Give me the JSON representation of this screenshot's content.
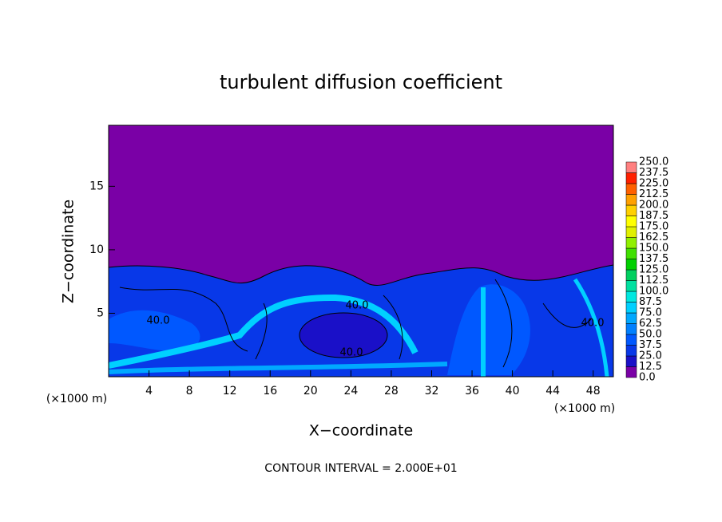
{
  "chart_data": {
    "type": "contour",
    "title": "turbulent diffusion coefficient",
    "x_label": "X−coordinate",
    "y_label": "Z−coordinate",
    "x_unit": "(×1000 m)",
    "note": "CONTOUR INTERVAL = 2.000E+01",
    "xlim": [
      0,
      50
    ],
    "ylim": [
      0,
      19.8
    ],
    "xticks": [
      4,
      8,
      12,
      16,
      20,
      24,
      28,
      32,
      36,
      40,
      44,
      48
    ],
    "yticks": [
      5,
      10,
      15
    ],
    "contour_labels": [
      "40.0",
      "40.0",
      "40.0",
      "40.0"
    ],
    "colorbar": {
      "levels": [
        {
          "value": 0,
          "label": "0.0"
        },
        {
          "value": 12.5,
          "label": "12.5"
        },
        {
          "value": 25,
          "label": "25.0"
        },
        {
          "value": 37.5,
          "label": "37.5"
        },
        {
          "value": 50,
          "label": "50.0"
        },
        {
          "value": 62.5,
          "label": "62.5"
        },
        {
          "value": 75,
          "label": "75.0"
        },
        {
          "value": 87.5,
          "label": "87.5"
        },
        {
          "value": 100,
          "label": "100.0"
        },
        {
          "value": 112.5,
          "label": "112.5"
        },
        {
          "value": 125,
          "label": "125.0"
        },
        {
          "value": 137.5,
          "label": "137.5"
        },
        {
          "value": 150,
          "label": "150.0"
        },
        {
          "value": 162.5,
          "label": "162.5"
        },
        {
          "value": 175,
          "label": "175.0"
        },
        {
          "value": 187.5,
          "label": "187.5"
        },
        {
          "value": 200,
          "label": "200.0"
        },
        {
          "value": 212.5,
          "label": "212.5"
        },
        {
          "value": 225,
          "label": "225.0"
        },
        {
          "value": 237.5,
          "label": "237.5"
        },
        {
          "value": 250,
          "label": "250.0"
        }
      ],
      "colors": [
        "#7a00a6",
        "#1a10c8",
        "#0838e8",
        "#0058ff",
        "#0080ff",
        "#00a8ff",
        "#00d0ff",
        "#00e8e0",
        "#00e0a0",
        "#00d060",
        "#00d000",
        "#40e000",
        "#90f000",
        "#e0f000",
        "#ffff00",
        "#ffd000",
        "#ffa000",
        "#ff6000",
        "#ff2000",
        "#ff8080"
      ]
    }
  }
}
